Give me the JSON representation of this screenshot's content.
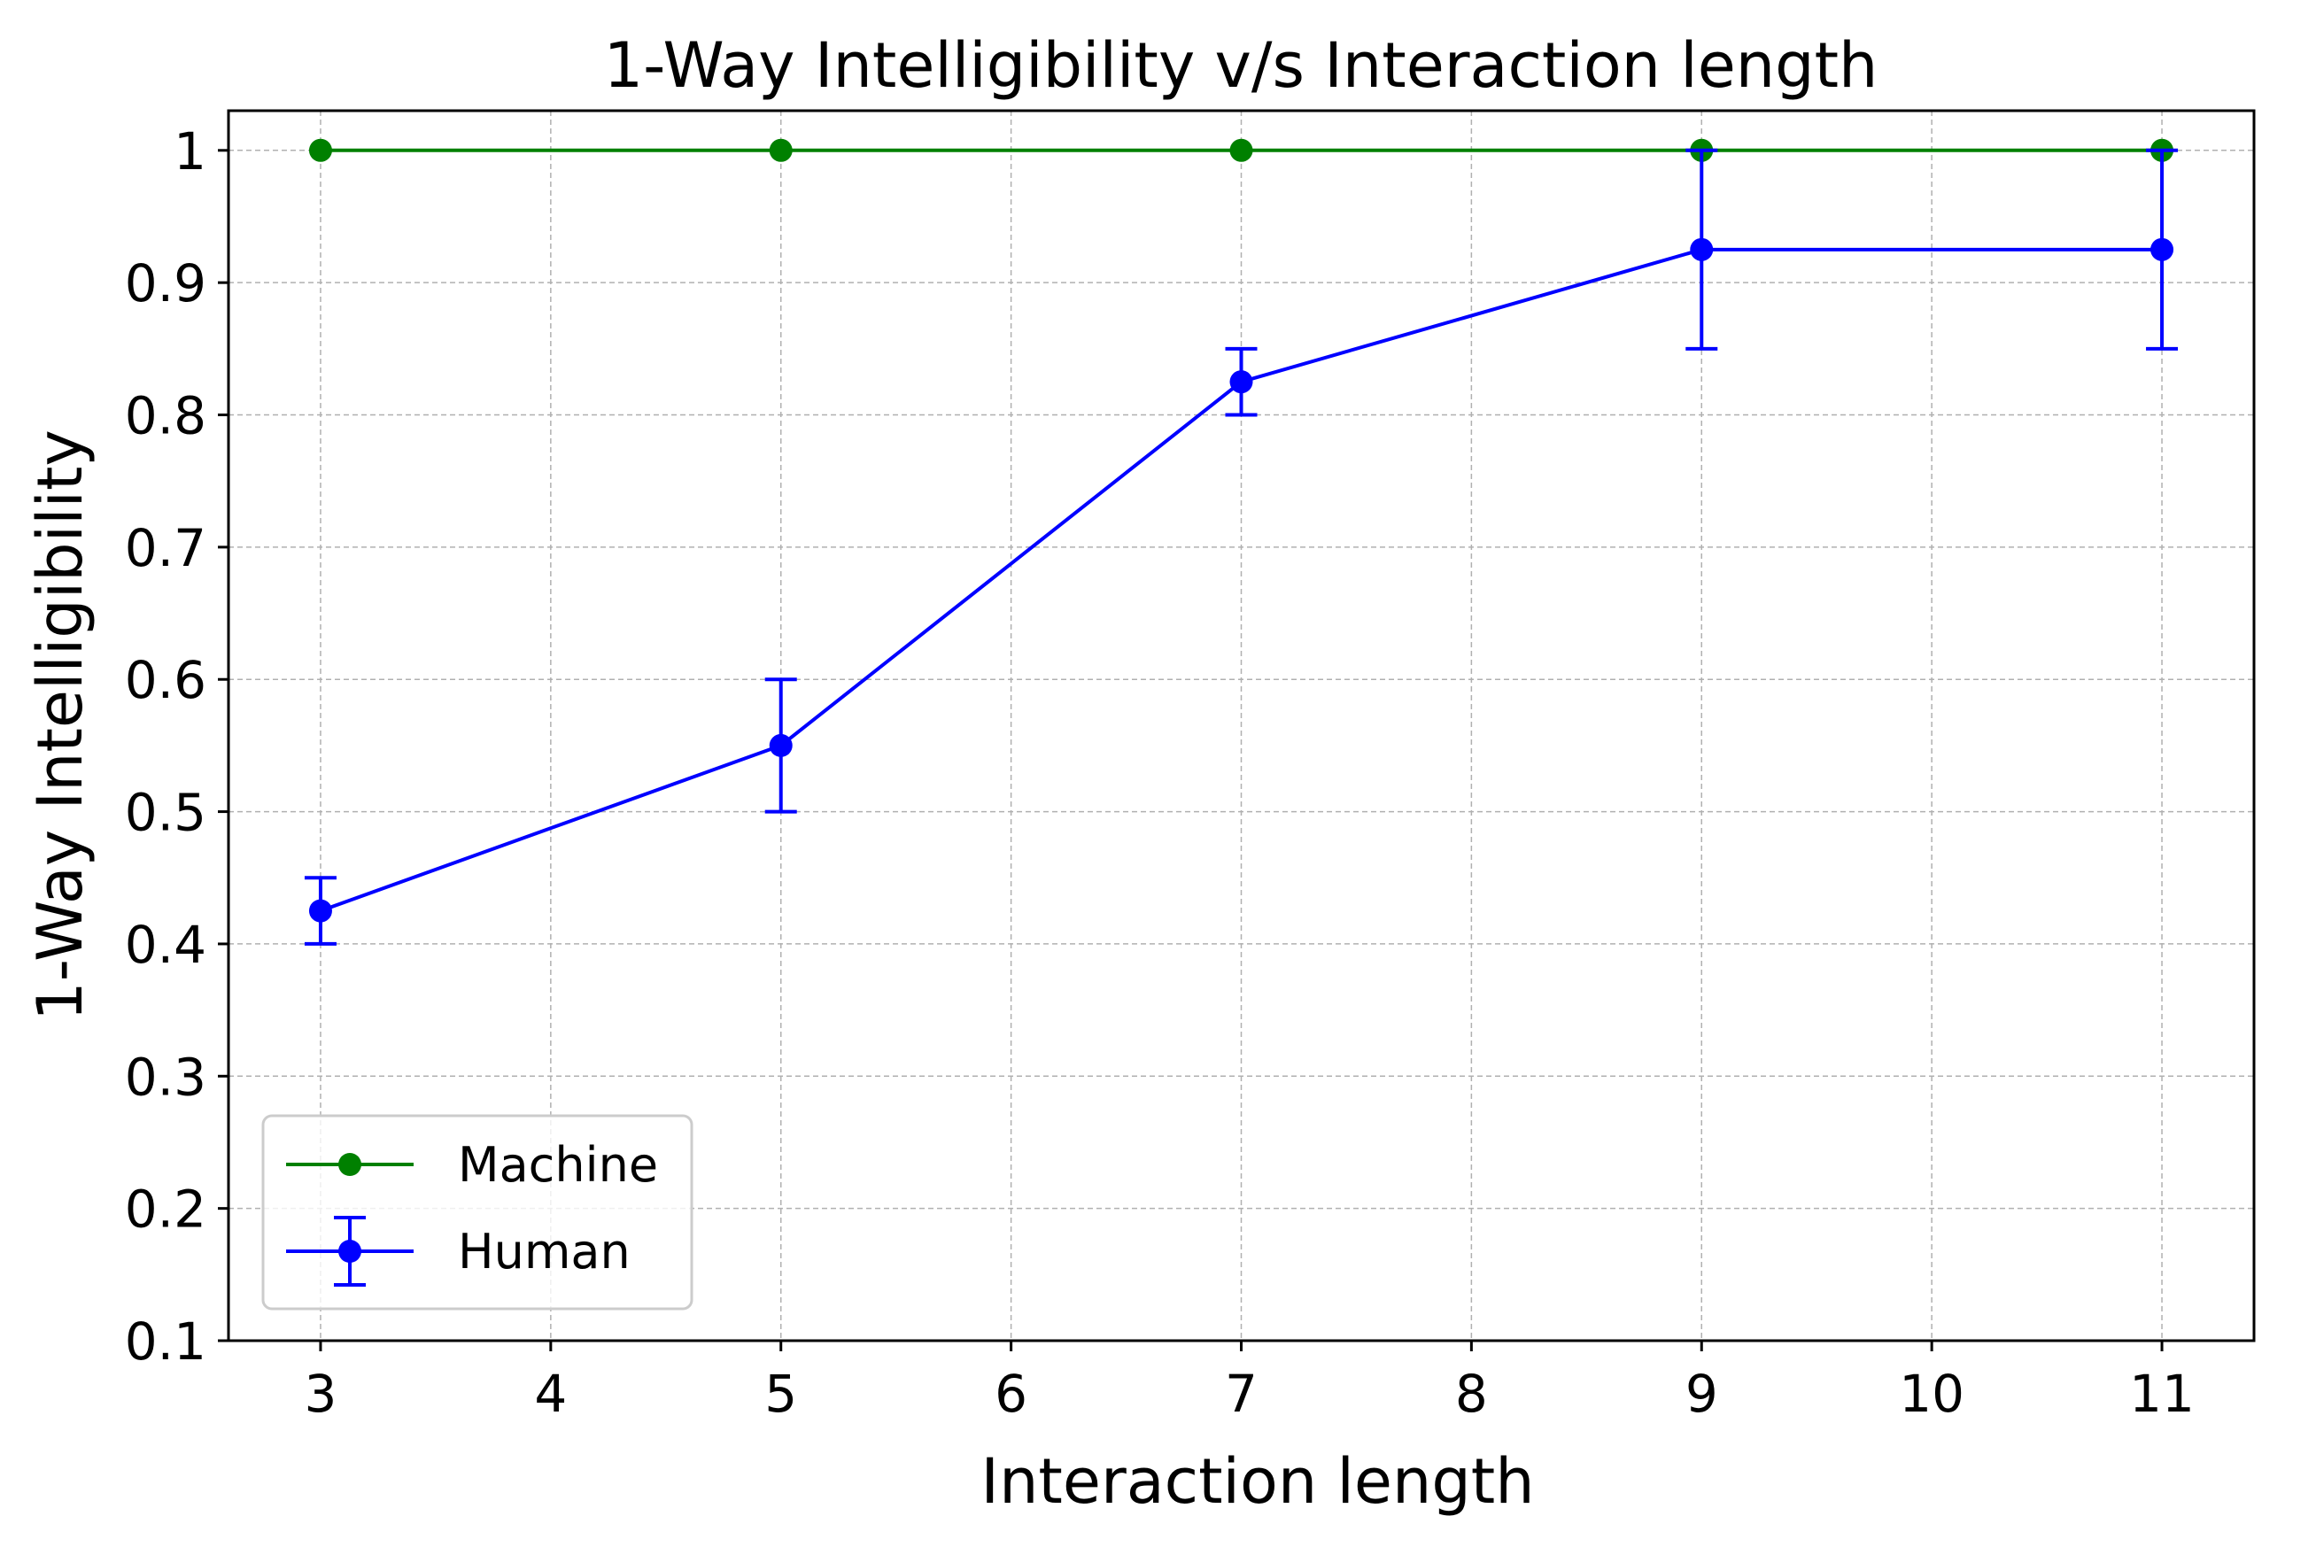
{
  "chart_data": {
    "type": "line",
    "title": "1-Way Intelligibility v/s Interaction length",
    "xlabel": "Interaction length",
    "ylabel": "1-Way Intelligibility",
    "x": [
      3,
      5,
      7,
      9,
      11
    ],
    "xlim": [
      2.6,
      11.4
    ],
    "ylim": [
      0.1,
      1.03
    ],
    "xticks": [
      3,
      4,
      5,
      6,
      7,
      8,
      9,
      10,
      11
    ],
    "xtick_labels": [
      "3",
      "4",
      "5",
      "6",
      "7",
      "8",
      "9",
      "10",
      "11"
    ],
    "yticks": [
      0.1,
      0.2,
      0.3,
      0.4,
      0.5,
      0.6,
      0.7,
      0.8,
      0.9,
      1.0
    ],
    "ytick_labels": [
      "0.1",
      "0.2",
      "0.3",
      "0.4",
      "0.5",
      "0.6",
      "0.7",
      "0.8",
      "0.9",
      "1"
    ],
    "grid": true,
    "legend_position": "lower-left",
    "series": [
      {
        "name": "Machine",
        "color": "#008000",
        "marker": "circle",
        "values": [
          1.0,
          1.0,
          1.0,
          1.0,
          1.0
        ],
        "errors": null
      },
      {
        "name": "Human",
        "color": "#0000ff",
        "marker": "circle",
        "values": [
          0.425,
          0.55,
          0.825,
          0.925,
          0.925
        ],
        "errors": [
          0.025,
          0.05,
          0.025,
          0.075,
          0.075
        ]
      }
    ]
  }
}
